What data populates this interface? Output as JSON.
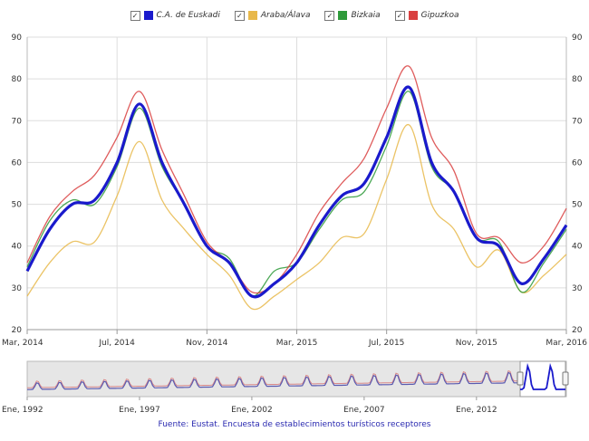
{
  "legend": [
    {
      "label": "C.A. de Euskadi",
      "color": "#1a1acc",
      "checked": true
    },
    {
      "label": "Araba/Álava",
      "color": "#e8b84a",
      "checked": true
    },
    {
      "label": "Bizkaia",
      "color": "#2e9a3a",
      "checked": true
    },
    {
      "label": "Gipuzkoa",
      "color": "#d94040",
      "checked": true
    }
  ],
  "source": "Fuente: Eustat. Encuesta de establecimientos turísticos receptores",
  "chart_data": {
    "type": "line",
    "x_tick_labels": [
      "Mar, 2014",
      "Jul, 2014",
      "Nov, 2014",
      "Mar, 2015",
      "Jul, 2015",
      "Nov, 2015",
      "Mar, 2016"
    ],
    "y_ticks": [
      20,
      30,
      40,
      50,
      60,
      70,
      80,
      90
    ],
    "ylim": [
      20,
      90
    ],
    "grid": true,
    "legend_position": "top",
    "series": [
      {
        "name": "C.A. de Euskadi",
        "color": "#1a1acc",
        "values": [
          34,
          44,
          50,
          51,
          60,
          74,
          60,
          50,
          40,
          36,
          28,
          31,
          36,
          45,
          52,
          55,
          66,
          78,
          60,
          53,
          42,
          40,
          31,
          37,
          45
        ]
      },
      {
        "name": "Araba/Álava",
        "color": "#e8b84a",
        "values": [
          28,
          36,
          41,
          41,
          52,
          65,
          51,
          44,
          38,
          33,
          25,
          28,
          32,
          36,
          42,
          43,
          56,
          69,
          50,
          44,
          35,
          39,
          29,
          33,
          38
        ]
      },
      {
        "name": "Bizkaia",
        "color": "#2e9a3a",
        "values": [
          35,
          46,
          51,
          50,
          59,
          73,
          59,
          50,
          40,
          37,
          28,
          34,
          36,
          44,
          51,
          53,
          64,
          77,
          59,
          53,
          42,
          41,
          29,
          36,
          44
        ]
      },
      {
        "name": "Gipuzkoa",
        "color": "#d94040",
        "values": [
          36,
          47,
          53,
          57,
          66,
          77,
          63,
          52,
          41,
          36,
          29,
          31,
          38,
          48,
          55,
          61,
          73,
          83,
          66,
          58,
          43,
          42,
          36,
          40,
          49
        ]
      }
    ],
    "navigator": {
      "x_tick_labels": [
        "Ene, 1992",
        "Ene, 1997",
        "Ene, 2002",
        "Ene, 2007",
        "Ene, 2012"
      ]
    }
  }
}
